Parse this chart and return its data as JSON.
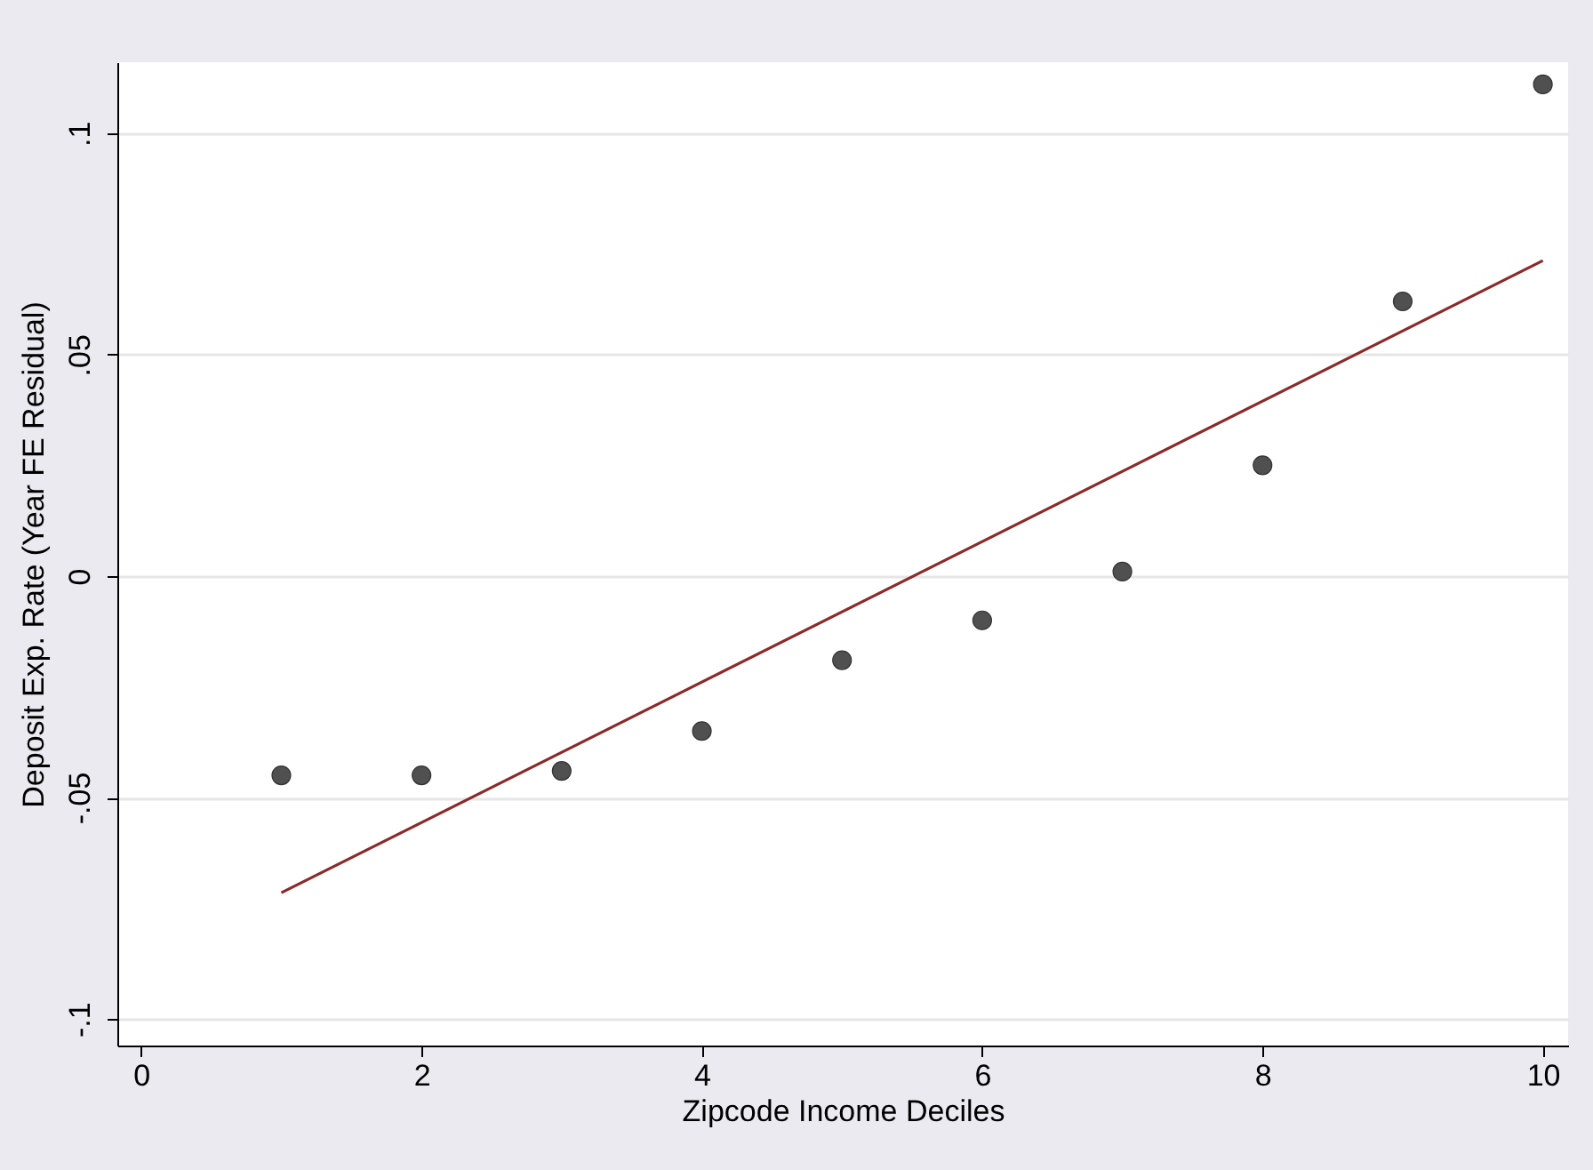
{
  "chart_data": {
    "type": "scatter",
    "xlabel": "Zipcode Income Deciles",
    "ylabel": "Deposit Exp. Rate (Year FE Residual)",
    "x": [
      1,
      2,
      3,
      4,
      5,
      6,
      7,
      8,
      9,
      10
    ],
    "series": [
      {
        "color": "#505050",
        "marker": "circle",
        "values": [
          -0.045,
          -0.045,
          -0.044,
          -0.035,
          -0.019,
          -0.01,
          0.001,
          0.025,
          0.062,
          0.111
        ]
      },
      {
        "type": "line",
        "color": "#8b2a2a",
        "line_style": "solid",
        "x": [
          1,
          10
        ],
        "values": [
          -0.0715,
          0.0712
        ]
      }
    ],
    "xlim": [
      -0.17,
      10.18
    ],
    "xticks": [
      0,
      2,
      4,
      6,
      8,
      10
    ],
    "ylim": [
      -0.106,
      0.116
    ],
    "yticks": [
      {
        "value": -0.1,
        "label": "-.1"
      },
      {
        "value": -0.05,
        "label": "-.05"
      },
      {
        "value": 0,
        "label": "0"
      },
      {
        "value": 0.05,
        "label": ".05"
      },
      {
        "value": 0.1,
        "label": ".1"
      }
    ],
    "grid": "y"
  }
}
